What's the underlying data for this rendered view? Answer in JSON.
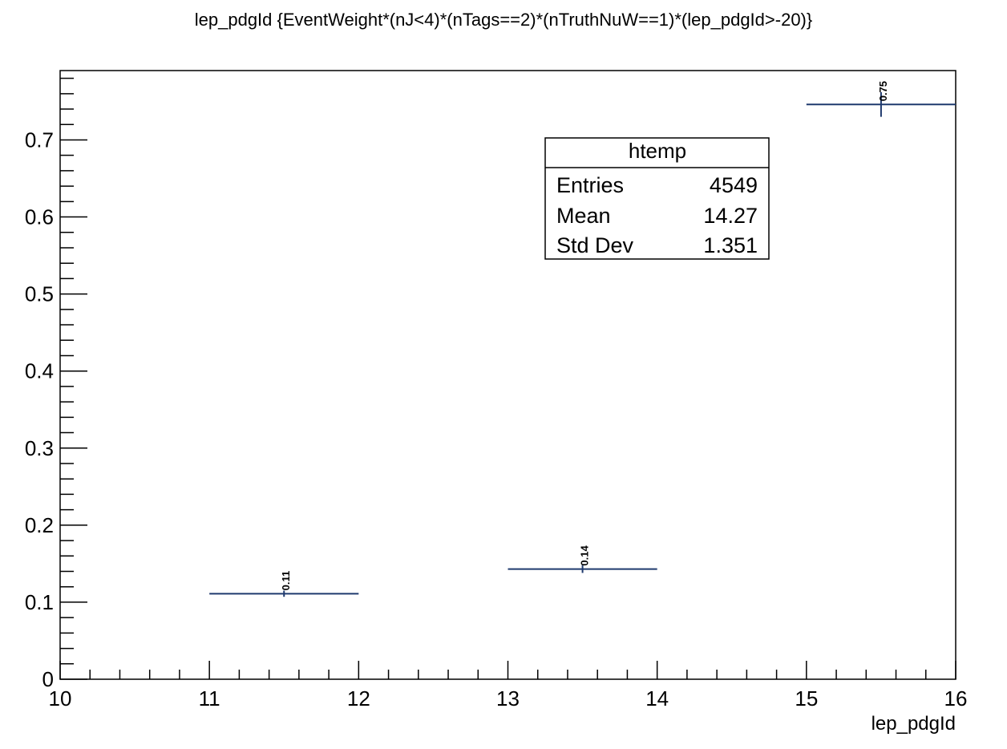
{
  "chart_data": {
    "type": "scatter",
    "title": "lep_pdgId {EventWeight*(nJ<4)*(nTags==2)*(nTruthNuW==1)*(lep_pdgId>-20)}",
    "xlabel": "lep_pdgId",
    "ylabel": "",
    "xlim": [
      10,
      16
    ],
    "ylim": [
      0,
      0.79
    ],
    "x_ticks": [
      10,
      11,
      12,
      13,
      14,
      15,
      16
    ],
    "y_ticks": [
      0,
      0.1,
      0.2,
      0.3,
      0.4,
      0.5,
      0.6,
      0.7
    ],
    "x_tick_labels": [
      "10",
      "11",
      "12",
      "13",
      "14",
      "15",
      "16"
    ],
    "y_tick_labels": [
      "0",
      "0.1",
      "0.2",
      "0.3",
      "0.4",
      "0.5",
      "0.6",
      "0.7"
    ],
    "grid": false,
    "bins": [
      {
        "x_low": 11,
        "x_high": 12,
        "y": 0.111,
        "err": 0.004,
        "label": "0.11"
      },
      {
        "x_low": 13,
        "x_high": 14,
        "y": 0.143,
        "err": 0.005,
        "label": "0.14"
      },
      {
        "x_low": 15,
        "x_high": 16,
        "y": 0.746,
        "err": 0.016,
        "label": "0.75"
      }
    ],
    "stats_box": {
      "title": "htemp",
      "rows": [
        {
          "label": "Entries",
          "value": "4549"
        },
        {
          "label": "Mean",
          "value": "14.27"
        },
        {
          "label": "Std Dev",
          "value": "1.351"
        }
      ]
    },
    "colors": {
      "marker": "#1f3a6e",
      "axis": "#000000"
    }
  }
}
